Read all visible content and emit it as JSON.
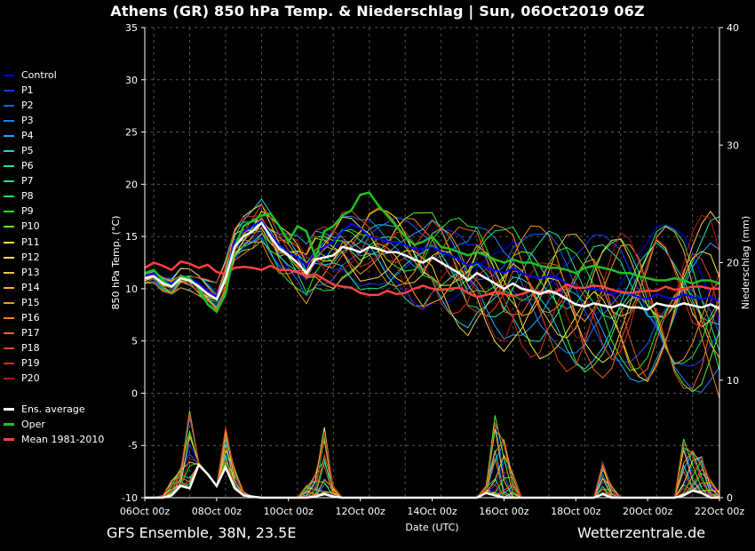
{
  "header": {
    "title": "Athens  (GR)  850 hPa Temp. & Niederschlag | Sun, 06Oct2019 06Z"
  },
  "footer": {
    "left": "GFS Ensemble, 38N, 23.5E",
    "right": "Wetterzentrale.de"
  },
  "chart_data": {
    "type": "line",
    "xlabel": "Date (UTC)",
    "ylabel": "850 hPa Temp. (°C)",
    "y2label": "Niederschlag (mm)",
    "ylim": [
      -10,
      35
    ],
    "y2lim": [
      0,
      40
    ],
    "xlim": [
      0,
      64
    ],
    "x_step_hours": 6,
    "x_ticks": [
      "06Oct 00z",
      "08Oct 00z",
      "10Oct 00z",
      "12Oct 00z",
      "14Oct 00z",
      "16Oct 00z",
      "18Oct 00z",
      "20Oct 00z",
      "22Oct 00z"
    ],
    "y_ticks": [
      -10,
      -5,
      0,
      5,
      10,
      15,
      20,
      25,
      30,
      35
    ],
    "y2_ticks": [
      0,
      10,
      20,
      30,
      40
    ],
    "grid": true,
    "legend_position": "left",
    "legend": [
      {
        "name": "Control",
        "color": "#0000ff"
      },
      {
        "name": "P1",
        "color": "#0a3cff"
      },
      {
        "name": "P2",
        "color": "#1060ff"
      },
      {
        "name": "P3",
        "color": "#1a82ff"
      },
      {
        "name": "P4",
        "color": "#1aa8ff"
      },
      {
        "name": "P5",
        "color": "#16d6e6"
      },
      {
        "name": "P6",
        "color": "#16e6b0"
      },
      {
        "name": "P7",
        "color": "#16e68a"
      },
      {
        "name": "P8",
        "color": "#16e660"
      },
      {
        "name": "P9",
        "color": "#20f020"
      },
      {
        "name": "P10",
        "color": "#60f020"
      },
      {
        "name": "P11",
        "color": "#f5f020"
      },
      {
        "name": "P12",
        "color": "#f5dc50"
      },
      {
        "name": "P13",
        "color": "#f5c840"
      },
      {
        "name": "P14",
        "color": "#f5b030"
      },
      {
        "name": "P15",
        "color": "#f59820"
      },
      {
        "name": "P16",
        "color": "#f58020"
      },
      {
        "name": "P17",
        "color": "#f06418"
      },
      {
        "name": "P18",
        "color": "#e04818"
      },
      {
        "name": "P19",
        "color": "#d03020"
      },
      {
        "name": "P20",
        "color": "#b01818"
      },
      {
        "name": "Ens. average",
        "color": "#ffffff"
      },
      {
        "name": "Oper",
        "color": "#20c020"
      },
      {
        "name": "Mean 1981-2010",
        "color": "#ff4040"
      }
    ],
    "temperature": {
      "ens_average": [
        11,
        11.2,
        10.5,
        10.2,
        11,
        10.8,
        10.2,
        9.5,
        9,
        11,
        14,
        15,
        15.5,
        16.3,
        15,
        13.8,
        13.2,
        12.5,
        11.5,
        12.8,
        13,
        13.2,
        14,
        13.8,
        13.5,
        14,
        13.8,
        13.5,
        13.5,
        13.2,
        12.8,
        12.5,
        13,
        12.5,
        12,
        11.5,
        10.8,
        11.5,
        11,
        10.5,
        10,
        10.5,
        10,
        9.8,
        9.5,
        9.8,
        9.5,
        9,
        8.5,
        8.3,
        8.6,
        8.4,
        8.2,
        8.5,
        8.2,
        8.2,
        8,
        8.6,
        8.4,
        8.3,
        8.6,
        8.4,
        8.2,
        8.5,
        8.1
      ],
      "oper": [
        11.5,
        11.8,
        10.8,
        10.2,
        11.2,
        11,
        10,
        8.5,
        7.8,
        9.5,
        14,
        16,
        16.5,
        17,
        17.2,
        16,
        14.5,
        16,
        15.5,
        13,
        15.5,
        16,
        17,
        17.5,
        19,
        19.2,
        18,
        17,
        16,
        15,
        14.2,
        14.5,
        15,
        14,
        13.8,
        13.5,
        13.2,
        13.5,
        13.2,
        12.8,
        12.5,
        12.8,
        12.5,
        12.5,
        12.2,
        12,
        12,
        11.8,
        11.5,
        12,
        12.2,
        12,
        11.8,
        11.5,
        11.5,
        11.2,
        11,
        10.8,
        10.8,
        11,
        10.8,
        10.5,
        10.8,
        10.8,
        10.5
      ],
      "control": [
        11.2,
        11.5,
        10.8,
        10.5,
        11.2,
        11,
        10.5,
        9.8,
        9.2,
        11,
        14.5,
        15.5,
        16,
        16.5,
        15.2,
        14.2,
        13.5,
        13,
        12.2,
        13.5,
        14,
        14.5,
        15.5,
        16.2,
        15.8,
        15,
        14.8,
        14.5,
        14.5,
        14.2,
        13.8,
        13.8,
        14,
        13.5,
        13.2,
        12.8,
        12.2,
        12.5,
        12,
        11.8,
        11.5,
        12,
        11.5,
        11.2,
        11,
        11.2,
        11,
        10.5,
        10.2,
        10,
        10,
        9.8,
        9.5,
        9.8,
        9.5,
        9.2,
        9,
        9.5,
        9.2,
        9,
        9.5,
        9.2,
        9,
        9.2,
        8.8
      ],
      "mean_1981_2010": [
        12,
        12.5,
        12.2,
        11.8,
        12.6,
        12.4,
        12,
        12.3,
        11.6,
        11.4,
        12,
        12.1,
        12,
        11.8,
        12.2,
        11.8,
        11.8,
        11.6,
        11.2,
        11.4,
        10.9,
        10.4,
        10.2,
        10.1,
        9.6,
        9.4,
        9.4,
        9.8,
        9.5,
        9.6,
        10,
        10.3,
        10,
        9.9,
        10,
        10.1,
        9.6,
        9.2,
        9.4,
        9.7,
        9.5,
        9.3,
        9.5,
        9.8,
        9.7,
        9.6,
        9.8,
        10.4,
        10.1,
        10.1,
        10.3,
        10.2,
        9.9,
        9.7,
        9.6,
        9.7,
        9.8,
        9.8,
        10.2,
        9.9,
        10,
        10.2,
        10.2,
        10,
        10
      ]
    },
    "precipitation_mm": {
      "ens_average": [
        0,
        0,
        0,
        0.2,
        1,
        0.8,
        2.8,
        2,
        1,
        2.6,
        0.8,
        0.2,
        0.1,
        0,
        0,
        0,
        0,
        0,
        0,
        0.1,
        0.3,
        0.1,
        0,
        0,
        0,
        0,
        0,
        0,
        0,
        0,
        0,
        0,
        0,
        0,
        0,
        0,
        0,
        0,
        0.4,
        0.2,
        0,
        0,
        0,
        0,
        0,
        0,
        0,
        0,
        0,
        0,
        0,
        0.3,
        0,
        0,
        0,
        0,
        0,
        0,
        0,
        0,
        0.2,
        0.6,
        0.4,
        0,
        0
      ],
      "members_peak": [
        0,
        0,
        0.2,
        1.5,
        2.5,
        7.5,
        3,
        2,
        1,
        6,
        2.5,
        0.5,
        0,
        0,
        0,
        0,
        0,
        0,
        1,
        2,
        6,
        1,
        0,
        0,
        0,
        0,
        0,
        0,
        0,
        0,
        0,
        0,
        0,
        0,
        0,
        0,
        0,
        0,
        1,
        7,
        5,
        2,
        0,
        0,
        0,
        0,
        0,
        0,
        0,
        0,
        0,
        3,
        1,
        0,
        0,
        0,
        0,
        0,
        0,
        0,
        5,
        4,
        3.5,
        1.5,
        0.5
      ]
    }
  }
}
